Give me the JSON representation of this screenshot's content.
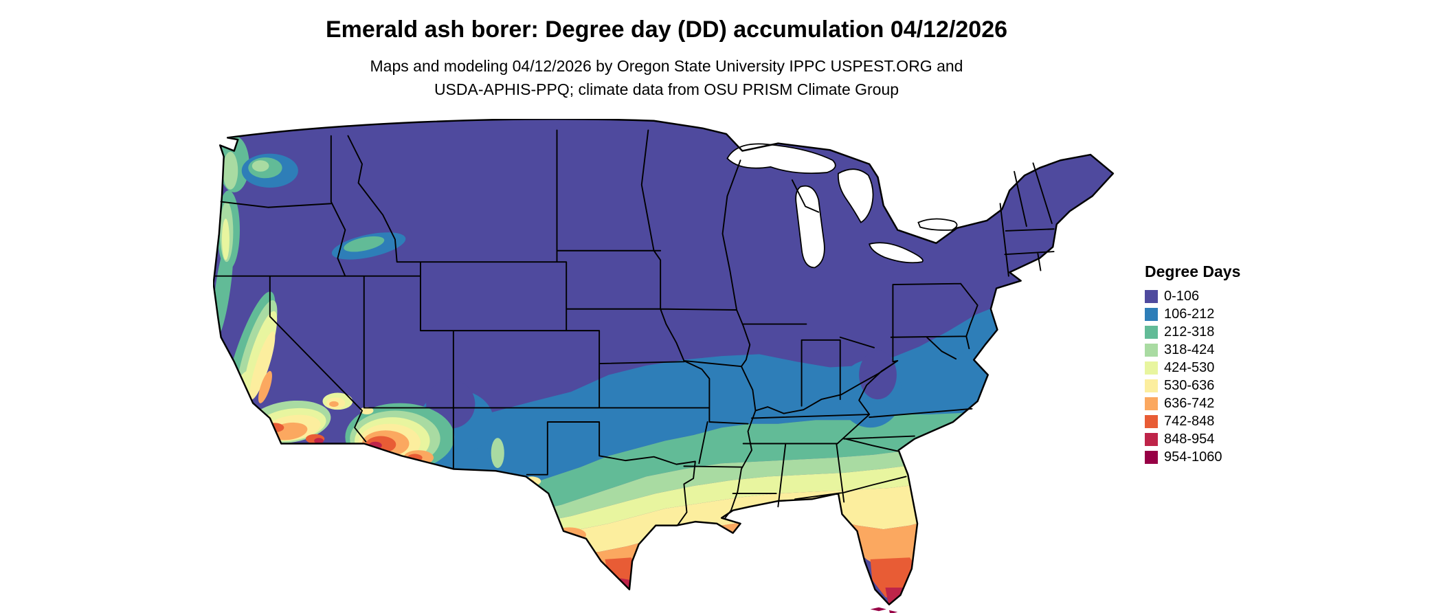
{
  "header": {
    "title": "Emerald ash borer: Degree day (DD) accumulation 04/12/2026",
    "subtitle_line1": "Maps and modeling 04/12/2026 by Oregon State University IPPC USPEST.ORG and",
    "subtitle_line2": "USDA-APHIS-PPQ; climate data from OSU PRISM Climate Group"
  },
  "legend": {
    "title": "Degree Days",
    "items": [
      {
        "label": "0-106",
        "color": "#4f4a9e"
      },
      {
        "label": "106-212",
        "color": "#2e7eb8"
      },
      {
        "label": "212-318",
        "color": "#62bb97"
      },
      {
        "label": "318-424",
        "color": "#a9dba2"
      },
      {
        "label": "424-530",
        "color": "#e8f59f"
      },
      {
        "label": "530-636",
        "color": "#fcee9e"
      },
      {
        "label": "636-742",
        "color": "#fba860"
      },
      {
        "label": "742-848",
        "color": "#e85c35"
      },
      {
        "label": "848-954",
        "color": "#be2449"
      },
      {
        "label": "954-1060",
        "color": "#970045"
      }
    ]
  },
  "map": {
    "type": "choropleth",
    "region": "Continental United States",
    "variable": "Degree Days",
    "date": "04/12/2026"
  }
}
